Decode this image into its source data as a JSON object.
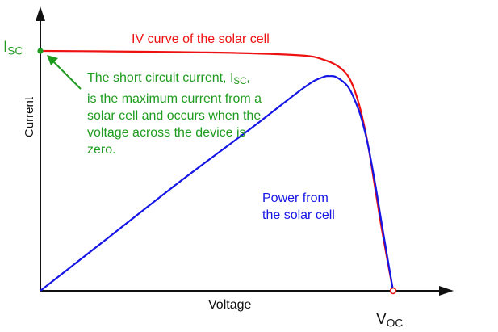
{
  "chart_data": {
    "type": "line",
    "title": "",
    "xlabel": "Voltage",
    "ylabel": "Current",
    "axis_ticks": {
      "x_end_label_main": "V",
      "x_end_label_sub": "OC",
      "y_top_label_main": "I",
      "y_top_label_sub": "SC"
    },
    "xlim": [
      0,
      1
    ],
    "ylim": [
      0,
      1
    ],
    "grid": false,
    "legend": "none",
    "series": [
      {
        "key": "iv",
        "color": "#ee1111",
        "x": [
          0,
          0.2,
          0.4,
          0.6,
          0.75,
          0.8,
          0.84,
          0.87,
          0.89,
          0.91,
          0.93,
          0.95,
          0.97,
          1.0
        ],
        "y": [
          1,
          0.998,
          0.995,
          0.99,
          0.98,
          0.965,
          0.94,
          0.9,
          0.84,
          0.74,
          0.6,
          0.42,
          0.24,
          0
        ]
      },
      {
        "key": "power",
        "color": "#1515e6",
        "x": [
          0,
          0.2,
          0.4,
          0.6,
          0.75,
          0.8,
          0.82,
          0.84,
          0.87,
          0.89,
          0.91,
          0.93,
          0.95,
          0.97,
          1.0
        ],
        "y": [
          0,
          0.23,
          0.46,
          0.68,
          0.85,
          0.89,
          0.895,
          0.89,
          0.855,
          0.8,
          0.72,
          0.6,
          0.44,
          0.26,
          0
        ]
      }
    ],
    "annotations": {
      "iv_label": "IV curve of the solar cell",
      "power_label_lines": [
        "Power from",
        "the solar cell"
      ],
      "isc_note_line1_main": "The short circuit current, I",
      "isc_note_line1_sub": "SC",
      "isc_note_line1_end": ",",
      "isc_note_lines": [
        "is the maximum current from a",
        "solar cell and occurs when the",
        "voltage across the device is",
        "zero."
      ]
    },
    "colors": {
      "axis": "#111111",
      "annotation": "#1f9c1f",
      "iv": "#ee1111",
      "power": "#1515e6"
    }
  }
}
